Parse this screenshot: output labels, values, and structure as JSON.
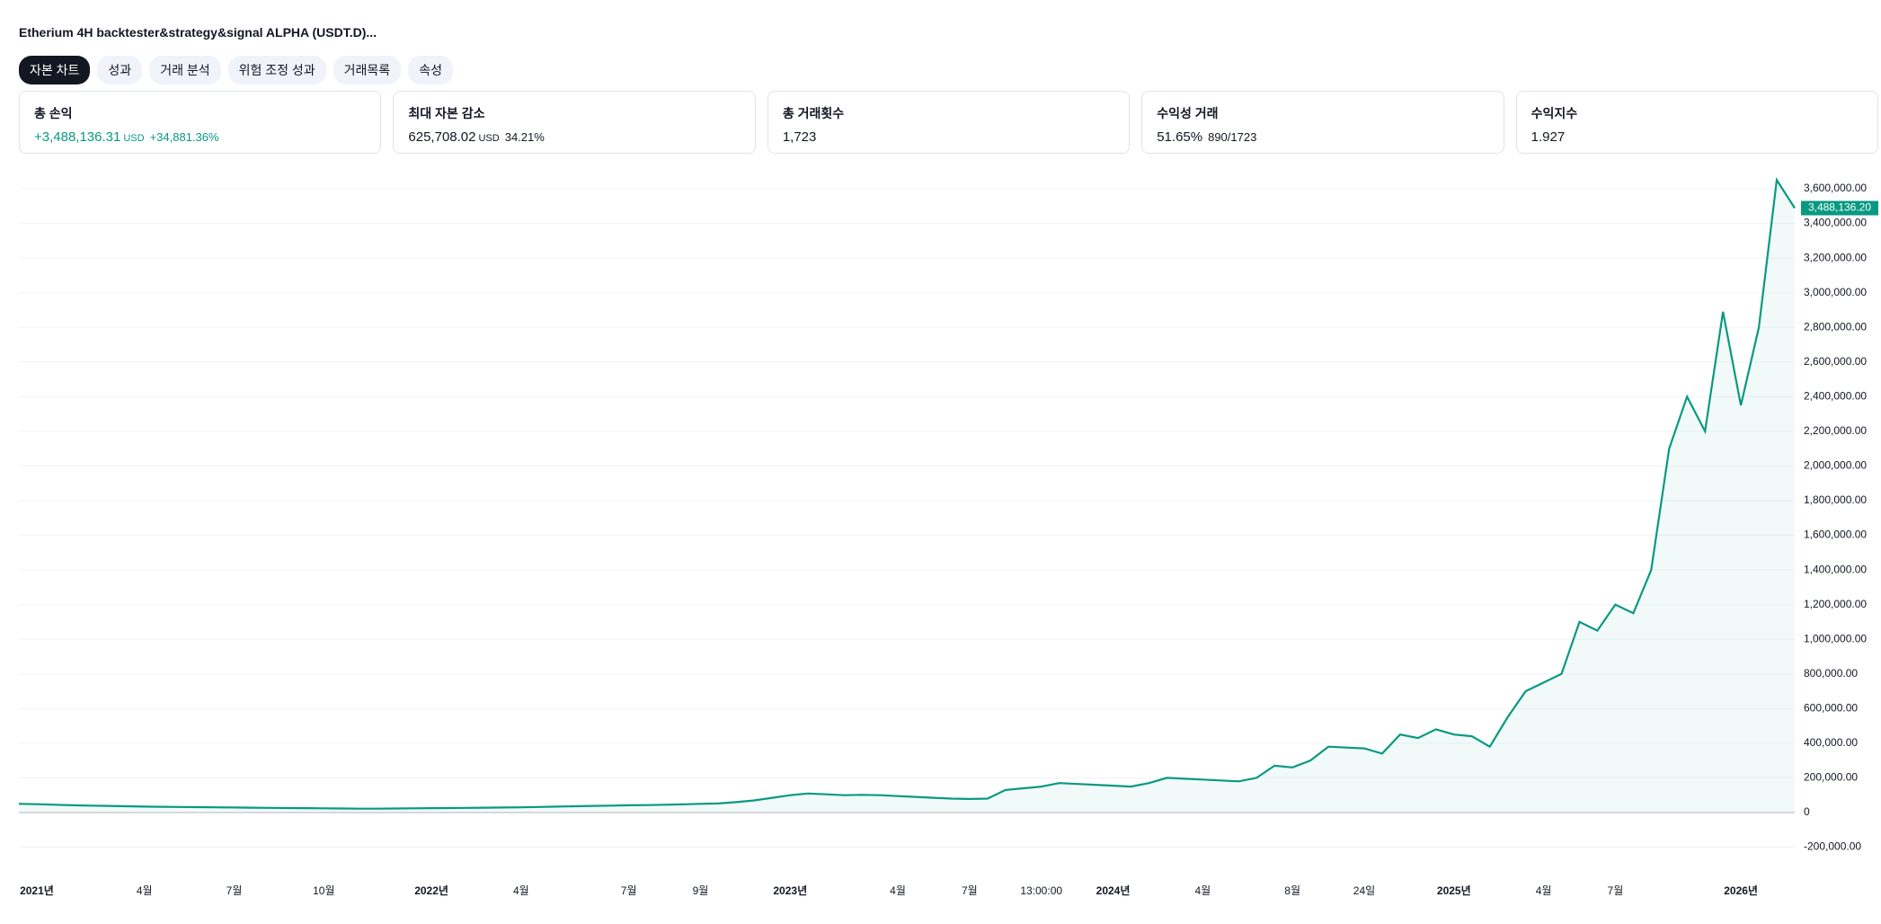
{
  "header": {
    "title": "Etherium 4H backtester&strategy&signal ALPHA (USDT.D)..."
  },
  "tabs": [
    "자본 차트",
    "성과",
    "거래 분석",
    "위험 조정 성과",
    "거래목록",
    "속성"
  ],
  "stats": [
    {
      "label": "총 손익",
      "value": "+3,488,136.31",
      "unit": "USD",
      "extra": "+34,881.36%"
    },
    {
      "label": "최대 자본 감소",
      "value": "625,708.02",
      "unit": "USD",
      "extra": "34.21%"
    },
    {
      "label": "총 거래횟수",
      "value": "1,723"
    },
    {
      "label": "수익성 거래",
      "value": "51.65%",
      "extra": "890/1723"
    },
    {
      "label": "수익지수",
      "value": "1.927"
    }
  ],
  "chart_data": {
    "type": "line",
    "categories": [
      null,
      "2021년",
      null,
      null,
      null,
      null,
      null,
      "4월",
      null,
      null,
      null,
      null,
      "7월",
      null,
      null,
      null,
      null,
      "10월",
      null,
      null,
      null,
      null,
      null,
      "2022년",
      null,
      null,
      null,
      null,
      "4월",
      null,
      null,
      null,
      null,
      null,
      "7월",
      null,
      null,
      null,
      "9월",
      null,
      null,
      null,
      null,
      "2023년",
      null,
      null,
      null,
      null,
      null,
      "4월",
      null,
      null,
      null,
      "7월",
      null,
      null,
      null,
      "13:00:00",
      null,
      null,
      null,
      "2024년",
      null,
      null,
      null,
      null,
      "4월",
      null,
      null,
      null,
      null,
      "8월",
      null,
      null,
      null,
      "24일",
      null,
      null,
      null,
      null,
      "2025년",
      null,
      null,
      null,
      null,
      "4월",
      null,
      null,
      null,
      "7월",
      null,
      null,
      null,
      null,
      null,
      null,
      "2026년",
      null,
      null,
      null
    ],
    "series": [
      {
        "name": "자본",
        "color": "#089981",
        "values": [
          50000,
          48000,
          45000,
          42000,
          40000,
          38000,
          36000,
          34000,
          33000,
          32000,
          31000,
          30000,
          29000,
          28000,
          27000,
          26000,
          25000,
          24000,
          23000,
          22000,
          22000,
          23000,
          24000,
          25000,
          26000,
          27000,
          28000,
          29000,
          30000,
          32000,
          34000,
          36000,
          38000,
          40000,
          42000,
          43000,
          45000,
          47000,
          50000,
          52000,
          60000,
          70000,
          85000,
          100000,
          110000,
          105000,
          100000,
          102000,
          100000,
          95000,
          90000,
          85000,
          80000,
          78000,
          80000,
          130000,
          140000,
          150000,
          170000,
          165000,
          160000,
          155000,
          150000,
          170000,
          200000,
          195000,
          190000,
          185000,
          180000,
          200000,
          270000,
          260000,
          300000,
          380000,
          375000,
          370000,
          340000,
          450000,
          430000,
          480000,
          450000,
          440000,
          380000,
          550000,
          700000,
          750000,
          800000,
          1100000,
          1050000,
          1200000,
          1150000,
          1400000,
          2100000,
          2400000,
          2200000,
          2890000,
          2350000,
          2800000,
          3650000,
          3488136.2
        ]
      }
    ],
    "last_label": {
      "value": 3488136.2,
      "label": "3,488,136.20"
    },
    "ylim": [
      -300000,
      3700000
    ],
    "yticks": [
      {
        "value": -200000,
        "label": "-200,000.00"
      },
      0,
      {
        "value": 200000,
        "label": "200,000.00"
      },
      {
        "value": 400000,
        "label": "400,000.00"
      },
      {
        "value": 600000,
        "label": "600,000.00"
      },
      {
        "value": 800000,
        "label": "800,000.00"
      },
      {
        "value": 1000000,
        "label": "1,000,000.00"
      },
      {
        "value": 1200000,
        "label": "1,200,000.00"
      },
      {
        "value": 1400000,
        "label": "1,400,000.00"
      },
      {
        "value": 1600000,
        "label": "1,600,000.00"
      },
      {
        "value": 1800000,
        "label": "1,800,000.00"
      },
      {
        "value": 2000000,
        "label": "2,000,000.00"
      },
      {
        "value": 2200000,
        "label": "2,200,000.00"
      },
      {
        "value": 2400000,
        "label": "2,400,000.00"
      },
      {
        "value": 2600000,
        "label": "2,600,000.00"
      },
      {
        "value": 2800000,
        "label": "2,800,000.00"
      },
      {
        "value": 3000000,
        "label": "3,000,000.00"
      },
      {
        "value": 3200000,
        "label": "3,200,000.00"
      },
      {
        "value": 3400000,
        "label": "3,400,000.00"
      },
      {
        "value": 3600000,
        "label": "3,600,000.00"
      }
    ],
    "grid": true
  }
}
